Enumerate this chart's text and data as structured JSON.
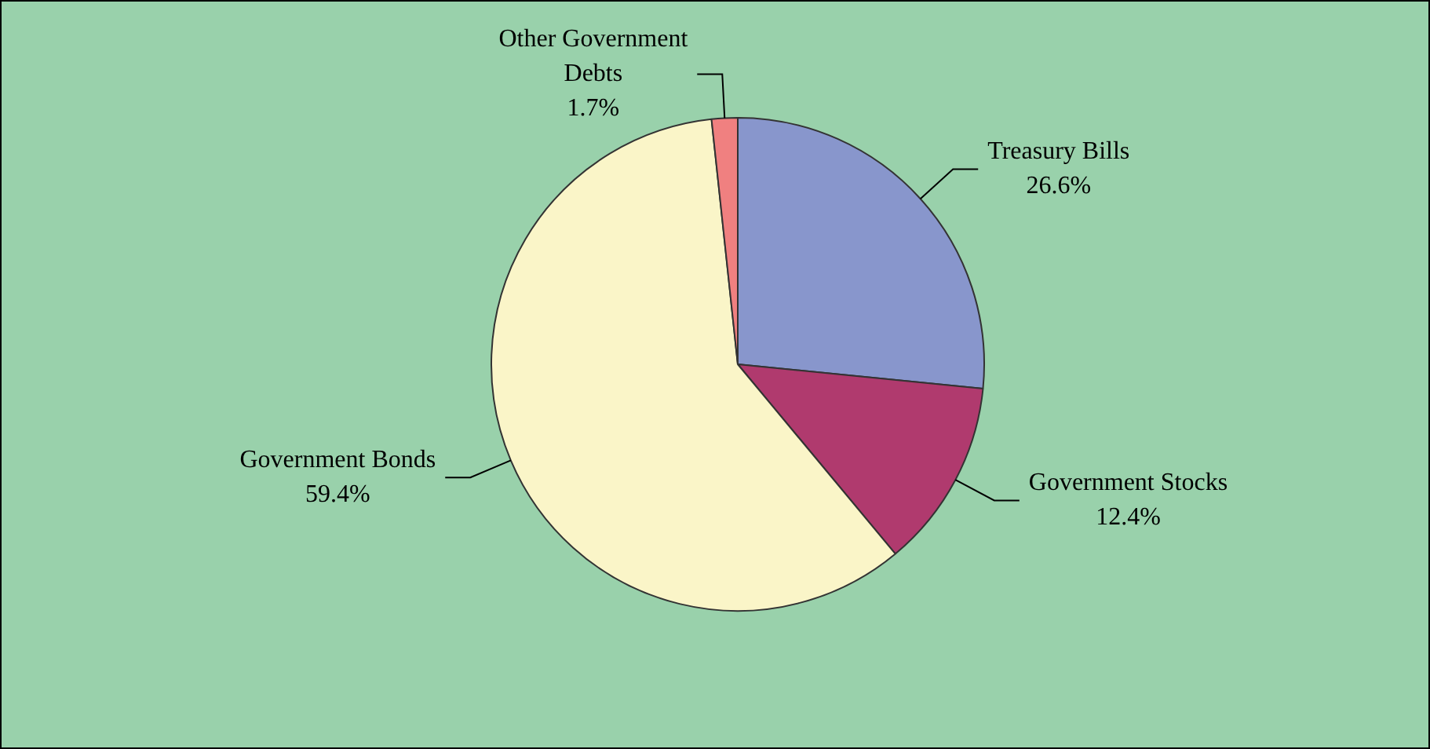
{
  "chart_data": {
    "type": "pie",
    "categories": [
      "Treasury Bills",
      "Government Stocks",
      "Government Bonds",
      "Other Government Debts"
    ],
    "values": [
      26.6,
      12.4,
      59.4,
      1.7
    ],
    "value_labels": [
      "26.6%",
      "12.4%",
      "59.4%",
      "1.7%"
    ],
    "colors": [
      "#8896cc",
      "#b03a6e",
      "#faf5c8",
      "#f08080"
    ],
    "legend": false
  }
}
